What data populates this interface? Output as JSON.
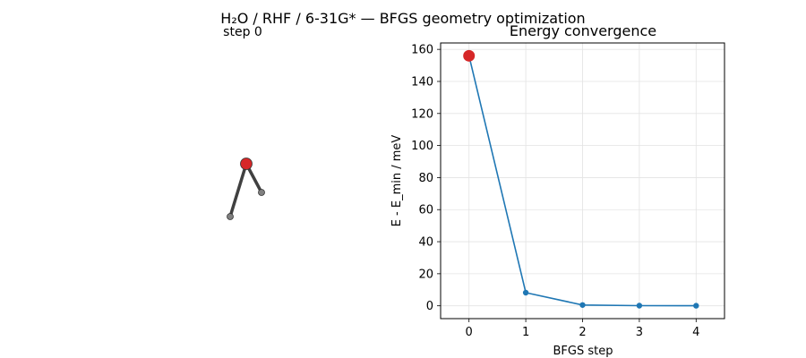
{
  "figure": {
    "suptitle": "H₂O / RHF / 6-31G* — BFGS geometry optimization"
  },
  "molecule_panel": {
    "title": "step 0",
    "atoms": [
      {
        "name": "oxygen",
        "color": "#d62728"
      },
      {
        "name": "hydrogen",
        "color": "#808080"
      },
      {
        "name": "hydrogen",
        "color": "#808080"
      }
    ],
    "bond_color": "#404040"
  },
  "chart_data": {
    "type": "line",
    "title": "Energy convergence",
    "xlabel": "BFGS step",
    "ylabel": "E - E_min  /  meV",
    "x": [
      0,
      1,
      2,
      3,
      4
    ],
    "series": [
      {
        "values": [
          156,
          8.2,
          0.5,
          0.1,
          0.05
        ],
        "color": "#1f77b4"
      }
    ],
    "highlight": {
      "x": 0,
      "y": 156,
      "color": "#d62728"
    },
    "xlim": [
      -0.5,
      4.5
    ],
    "ylim": [
      -8,
      164
    ],
    "xticks": [
      0,
      1,
      2,
      3,
      4
    ],
    "yticks": [
      0,
      20,
      40,
      60,
      80,
      100,
      120,
      140,
      160
    ],
    "grid": true
  }
}
